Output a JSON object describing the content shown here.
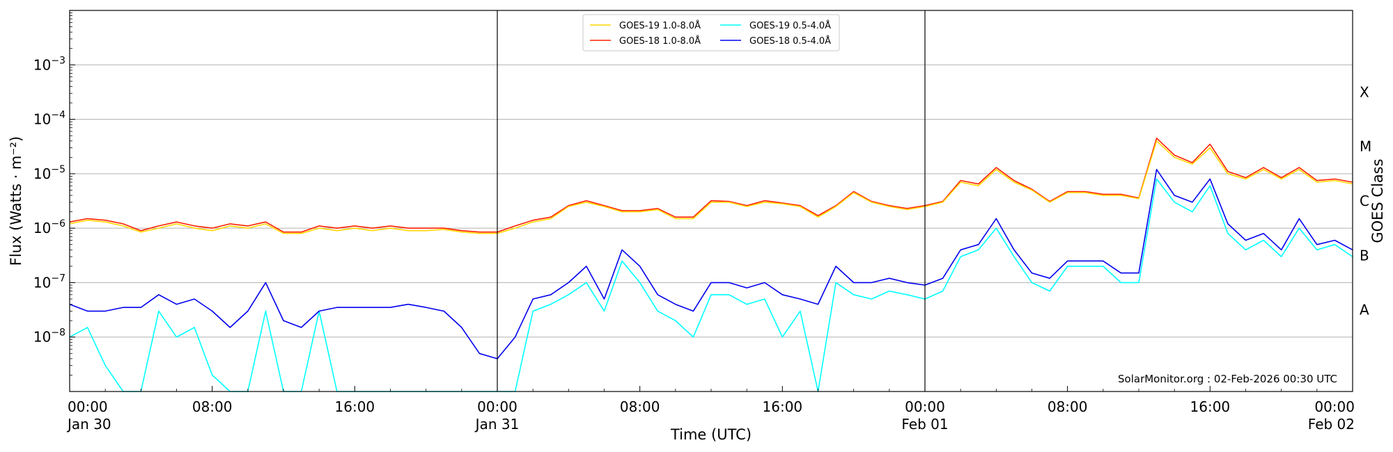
{
  "chart_data": {
    "type": "line",
    "xlabel": "Time (UTC)",
    "ylabel": "Flux (Watts · m⁻²)",
    "right_axis_label": "GOES Class",
    "x_range": [
      "2026-01-30 00:00",
      "2026-02-02 00:00"
    ],
    "y_scale": "log",
    "ylim": [
      1e-09,
      0.01
    ],
    "grid": "horizontal at decades",
    "legend_position": "top-center",
    "credit": "SolarMonitor.org : 02-Feb-2026 00:30 UTC",
    "x_ticks": [
      {
        "hours": 0,
        "line1": "00:00",
        "line2": "Jan 30"
      },
      {
        "hours": 8,
        "line1": "08:00",
        "line2": ""
      },
      {
        "hours": 16,
        "line1": "16:00",
        "line2": ""
      },
      {
        "hours": 24,
        "line1": "00:00",
        "line2": "Jan 31"
      },
      {
        "hours": 32,
        "line1": "08:00",
        "line2": ""
      },
      {
        "hours": 40,
        "line1": "16:00",
        "line2": ""
      },
      {
        "hours": 48,
        "line1": "00:00",
        "line2": "Feb 01"
      },
      {
        "hours": 56,
        "line1": "08:00",
        "line2": ""
      },
      {
        "hours": 64,
        "line1": "16:00",
        "line2": ""
      },
      {
        "hours": 72,
        "line1": "00:00",
        "line2": "Feb 02"
      }
    ],
    "day_boundaries_hours": [
      24,
      48
    ],
    "y_ticks": [
      {
        "exp": -3,
        "base": "10",
        "power": "−3"
      },
      {
        "exp": -4,
        "base": "10",
        "power": "−4"
      },
      {
        "exp": -5,
        "base": "10",
        "power": "−5"
      },
      {
        "exp": -6,
        "base": "10",
        "power": "−6"
      },
      {
        "exp": -7,
        "base": "10",
        "power": "−7"
      },
      {
        "exp": -8,
        "base": "10",
        "power": "−8"
      }
    ],
    "goes_classes": [
      {
        "label": "X",
        "exp": -3.5
      },
      {
        "label": "M",
        "exp": -4.5
      },
      {
        "label": "C",
        "exp": -5.5
      },
      {
        "label": "B",
        "exp": -6.5
      },
      {
        "label": "A",
        "exp": -7.5
      }
    ],
    "series": [
      {
        "name": "GOES-19 1.0-8.0Å",
        "color": "#ffd700",
        "x_hours": [
          0,
          1,
          2,
          3,
          4,
          5,
          6,
          7,
          8,
          9,
          10,
          11,
          12,
          13,
          14,
          15,
          16,
          17,
          18,
          19,
          20,
          21,
          22,
          23,
          24,
          25,
          26,
          27,
          28,
          29,
          30,
          31,
          32,
          33,
          34,
          35,
          36,
          37,
          38,
          39,
          40,
          41,
          42,
          43,
          44,
          45,
          46,
          47,
          48,
          49,
          50,
          51,
          52,
          53,
          54,
          55,
          56,
          57,
          58,
          59,
          60,
          61,
          62,
          63,
          64,
          65,
          66,
          67,
          68,
          69,
          70,
          71,
          72
        ],
        "y": [
          1.2e-06,
          1.4e-06,
          1.3e-06,
          1.1e-06,
          8.5e-07,
          1e-06,
          1.2e-06,
          1e-06,
          9e-07,
          1.1e-06,
          1e-06,
          1.2e-06,
          8e-07,
          8e-07,
          1e-06,
          9e-07,
          1e-06,
          9e-07,
          1e-06,
          9e-07,
          9e-07,
          9.5e-07,
          8.5e-07,
          8e-07,
          8e-07,
          1e-06,
          1.3e-06,
          1.5e-06,
          2.5e-06,
          3e-06,
          2.5e-06,
          2e-06,
          2e-06,
          2.2e-06,
          1.5e-06,
          1.5e-06,
          3e-06,
          3e-06,
          2.5e-06,
          3e-06,
          2.8e-06,
          2.5e-06,
          1.6e-06,
          2.5e-06,
          4.5e-06,
          3e-06,
          2.5e-06,
          2.2e-06,
          2.5e-06,
          3e-06,
          7e-06,
          6e-06,
          1.2e-05,
          7e-06,
          5e-06,
          3e-06,
          4.5e-06,
          4.5e-06,
          4e-06,
          4e-06,
          3.5e-06,
          4e-05,
          2e-05,
          1.5e-05,
          3e-05,
          1e-05,
          8e-06,
          1.2e-05,
          8e-06,
          1.2e-05,
          7e-06,
          7.5e-06,
          6.5e-06
        ]
      },
      {
        "name": "GOES-18 1.0-8.0Å",
        "color": "#ff2000",
        "x_hours": [
          0,
          1,
          2,
          3,
          4,
          5,
          6,
          7,
          8,
          9,
          10,
          11,
          12,
          13,
          14,
          15,
          16,
          17,
          18,
          19,
          20,
          21,
          22,
          23,
          24,
          25,
          26,
          27,
          28,
          29,
          30,
          31,
          32,
          33,
          34,
          35,
          36,
          37,
          38,
          39,
          40,
          41,
          42,
          43,
          44,
          45,
          46,
          47,
          48,
          49,
          50,
          51,
          52,
          53,
          54,
          55,
          56,
          57,
          58,
          59,
          60,
          61,
          62,
          63,
          64,
          65,
          66,
          67,
          68,
          69,
          70,
          71,
          72
        ],
        "y": [
          1.3e-06,
          1.5e-06,
          1.4e-06,
          1.2e-06,
          9e-07,
          1.1e-06,
          1.3e-06,
          1.1e-06,
          1e-06,
          1.2e-06,
          1.1e-06,
          1.3e-06,
          8.5e-07,
          8.5e-07,
          1.1e-06,
          1e-06,
          1.1e-06,
          1e-06,
          1.1e-06,
          1e-06,
          1e-06,
          1e-06,
          9e-07,
          8.5e-07,
          8.5e-07,
          1.1e-06,
          1.4e-06,
          1.6e-06,
          2.6e-06,
          3.2e-06,
          2.6e-06,
          2.1e-06,
          2.1e-06,
          2.3e-06,
          1.6e-06,
          1.6e-06,
          3.2e-06,
          3.1e-06,
          2.6e-06,
          3.2e-06,
          2.9e-06,
          2.6e-06,
          1.7e-06,
          2.6e-06,
          4.7e-06,
          3.1e-06,
          2.6e-06,
          2.3e-06,
          2.6e-06,
          3.1e-06,
          7.5e-06,
          6.5e-06,
          1.3e-05,
          7.5e-06,
          5.2e-06,
          3.1e-06,
          4.7e-06,
          4.7e-06,
          4.2e-06,
          4.2e-06,
          3.6e-06,
          4.5e-05,
          2.2e-05,
          1.6e-05,
          3.5e-05,
          1.1e-05,
          8.5e-06,
          1.3e-05,
          8.5e-06,
          1.3e-05,
          7.5e-06,
          8e-06,
          7e-06
        ]
      },
      {
        "name": "GOES-19 0.5-4.0Å",
        "color": "#00ffff",
        "x_hours": [
          0,
          1,
          2,
          3,
          4,
          5,
          6,
          7,
          8,
          9,
          10,
          11,
          12,
          13,
          14,
          15,
          16,
          17,
          18,
          19,
          20,
          21,
          22,
          23,
          24,
          25,
          26,
          27,
          28,
          29,
          30,
          31,
          32,
          33,
          34,
          35,
          36,
          37,
          38,
          39,
          40,
          41,
          42,
          43,
          44,
          45,
          46,
          47,
          48,
          49,
          50,
          51,
          52,
          53,
          54,
          55,
          56,
          57,
          58,
          59,
          60,
          61,
          62,
          63,
          64,
          65,
          66,
          67,
          68,
          69,
          70,
          71,
          72
        ],
        "y": [
          1e-08,
          1.5e-08,
          3e-09,
          1e-09,
          1e-09,
          3e-08,
          1e-08,
          1.5e-08,
          2e-09,
          1e-09,
          1e-09,
          3e-08,
          1e-09,
          1e-09,
          3e-08,
          1e-09,
          1e-09,
          1e-09,
          1e-09,
          1e-09,
          1e-09,
          1e-09,
          1e-09,
          1e-09,
          1e-09,
          1e-09,
          3e-08,
          4e-08,
          6e-08,
          1e-07,
          3e-08,
          2.5e-07,
          1e-07,
          3e-08,
          2e-08,
          1e-08,
          6e-08,
          6e-08,
          4e-08,
          5e-08,
          1e-08,
          3e-08,
          1e-09,
          1e-07,
          6e-08,
          5e-08,
          7e-08,
          6e-08,
          5e-08,
          7e-08,
          3e-07,
          4e-07,
          1e-06,
          3e-07,
          1e-07,
          7e-08,
          2e-07,
          2e-07,
          2e-07,
          1e-07,
          1e-07,
          8e-06,
          3e-06,
          2e-06,
          6e-06,
          8e-07,
          4e-07,
          6e-07,
          3e-07,
          1e-06,
          4e-07,
          5e-07,
          3e-07
        ]
      },
      {
        "name": "GOES-18 0.5-4.0Å",
        "color": "#0000ee",
        "x_hours": [
          0,
          1,
          2,
          3,
          4,
          5,
          6,
          7,
          8,
          9,
          10,
          11,
          12,
          13,
          14,
          15,
          16,
          17,
          18,
          19,
          20,
          21,
          22,
          23,
          24,
          25,
          26,
          27,
          28,
          29,
          30,
          31,
          32,
          33,
          34,
          35,
          36,
          37,
          38,
          39,
          40,
          41,
          42,
          43,
          44,
          45,
          46,
          47,
          48,
          49,
          50,
          51,
          52,
          53,
          54,
          55,
          56,
          57,
          58,
          59,
          60,
          61,
          62,
          63,
          64,
          65,
          66,
          67,
          68,
          69,
          70,
          71,
          72
        ],
        "y": [
          4e-08,
          3e-08,
          3e-08,
          3.5e-08,
          3.5e-08,
          6e-08,
          4e-08,
          5e-08,
          3e-08,
          1.5e-08,
          3e-08,
          1e-07,
          2e-08,
          1.5e-08,
          3e-08,
          3.5e-08,
          3.5e-08,
          3.5e-08,
          3.5e-08,
          4e-08,
          3.5e-08,
          3e-08,
          1.5e-08,
          5e-09,
          4e-09,
          1e-08,
          5e-08,
          6e-08,
          1e-07,
          2e-07,
          5e-08,
          4e-07,
          2e-07,
          6e-08,
          4e-08,
          3e-08,
          1e-07,
          1e-07,
          8e-08,
          1e-07,
          6e-08,
          5e-08,
          4e-08,
          2e-07,
          1e-07,
          1e-07,
          1.2e-07,
          1e-07,
          9e-08,
          1.2e-07,
          4e-07,
          5e-07,
          1.5e-06,
          4e-07,
          1.5e-07,
          1.2e-07,
          2.5e-07,
          2.5e-07,
          2.5e-07,
          1.5e-07,
          1.5e-07,
          1.2e-05,
          4e-06,
          3e-06,
          8e-06,
          1.2e-06,
          6e-07,
          8e-07,
          4e-07,
          1.5e-06,
          5e-07,
          6e-07,
          4e-07
        ]
      }
    ]
  }
}
